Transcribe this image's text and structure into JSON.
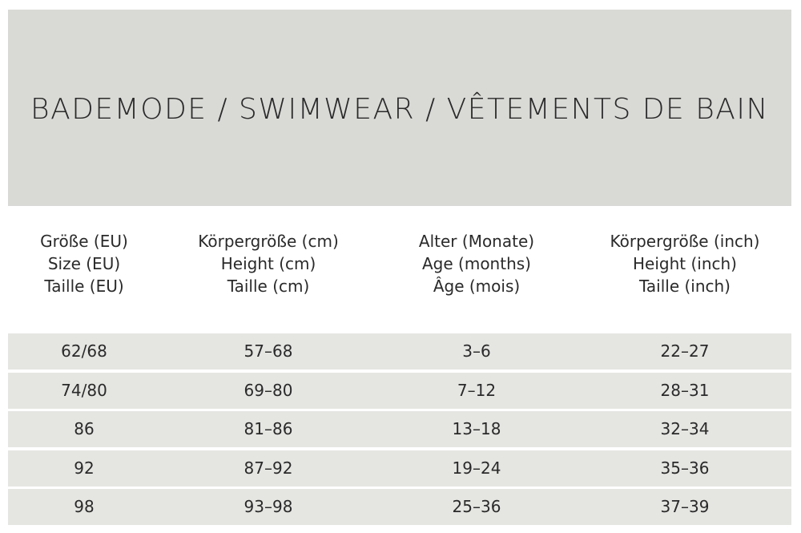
{
  "title": "BADEMODE / SWIMWEAR / VÊTEMENTS DE BAIN",
  "table": {
    "headers": [
      [
        "Größe (EU)",
        "Size (EU)",
        "Taille (EU)"
      ],
      [
        "Körpergröße (cm)",
        "Height (cm)",
        "Taille (cm)"
      ],
      [
        "Alter (Monate)",
        "Age (months)",
        "Âge (mois)"
      ],
      [
        "Körpergröße (inch)",
        "Height (inch)",
        "Taille (inch)"
      ]
    ],
    "rows": [
      [
        "62/68",
        "57–68",
        "3–6",
        "22–27"
      ],
      [
        "74/80",
        "69–80",
        "7–12",
        "28–31"
      ],
      [
        "86",
        "81–86",
        "13–18",
        "32–34"
      ],
      [
        "92",
        "87–92",
        "19–24",
        "35–36"
      ],
      [
        "98",
        "93–98",
        "25–36",
        "37–39"
      ]
    ]
  }
}
